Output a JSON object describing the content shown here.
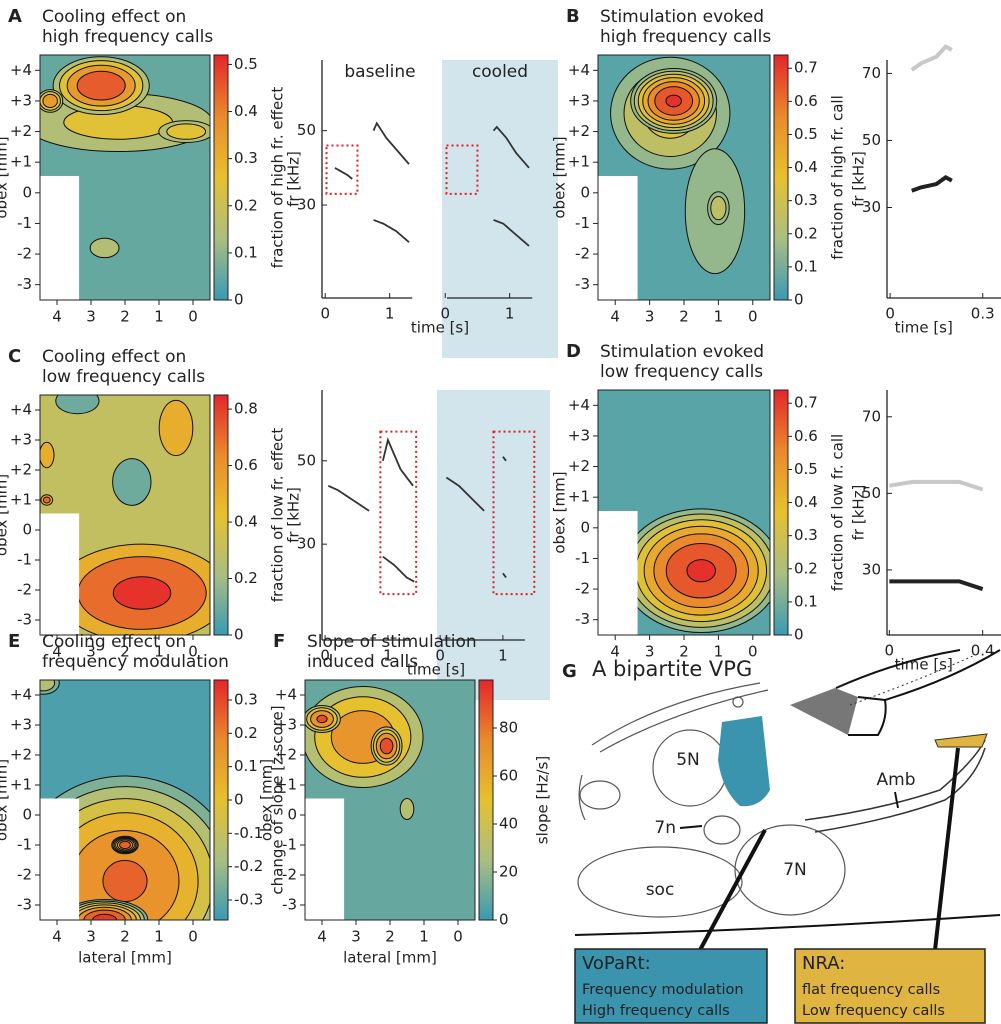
{
  "chart_data": [
    {
      "type": "contour",
      "label": "A",
      "title": [
        "Cooling effect on",
        "high frequency calls"
      ],
      "ylabel": "obex [mm]",
      "colorbar_label": "fraction of high fr. effect",
      "xlim": [
        4.5,
        -0.5
      ],
      "xticks": [
        4,
        3,
        2,
        1,
        0
      ],
      "ylim": [
        -3.5,
        4.5
      ],
      "yticks": [
        -3,
        -2,
        -1,
        0,
        {
          "value": 1,
          "label": "+1"
        },
        {
          "value": 2,
          "label": "+2"
        },
        {
          "value": 3,
          "label": "+3"
        },
        {
          "value": 4,
          "label": "+4"
        }
      ],
      "clim": [
        0,
        0.52
      ],
      "cticks": [
        0,
        0.1,
        0.2,
        0.3,
        0.4,
        0.5
      ],
      "colormap": [
        "#3a9ab3",
        "#a9be82",
        "#e6c12f",
        "#e98a2c",
        "#e4262b"
      ],
      "background": 0.05,
      "hotspots": [
        {
          "x": 2.2,
          "y": 2.3,
          "rx": 3.2,
          "ry": 1.1,
          "value": 0.25
        },
        {
          "x": 2.7,
          "y": 3.5,
          "rx": 1.5,
          "ry": 1.0,
          "value": 0.5
        },
        {
          "x": 0.2,
          "y": 2.0,
          "rx": 0.9,
          "ry": 0.4,
          "value": 0.3
        },
        {
          "x": 4.2,
          "y": 3.0,
          "rx": 0.4,
          "ry": 0.4,
          "value": 0.4
        },
        {
          "x": 2.6,
          "y": -1.8,
          "rx": 0.6,
          "ry": 0.45,
          "value": 0.15
        }
      ]
    },
    {
      "type": "spectrogram",
      "ylabel": "fr [kHz]",
      "xlabel": "time [s]",
      "xlim": [
        -0.05,
        1.75
      ],
      "xticks": [
        0,
        1
      ],
      "ylim": [
        5,
        69
      ],
      "yticks": [
        30,
        50
      ],
      "panels": [
        {
          "name": "baseline",
          "shaded": false,
          "highlight": [
            0.02,
            0.5,
            33,
            46
          ],
          "traces": [
            {
              "t": [
                0.15,
                0.25,
                0.35,
                0.42
              ],
              "f": [
                40,
                39,
                38,
                37
              ]
            },
            {
              "t": [
                0.75,
                0.8,
                0.95,
                1.1,
                1.3
              ],
              "f": [
                50,
                52,
                48,
                45,
                41
              ]
            },
            {
              "t": [
                0.75,
                0.9,
                1.1,
                1.3
              ],
              "f": [
                26,
                25,
                23,
                20
              ]
            }
          ]
        },
        {
          "name": "cooled",
          "shaded": true,
          "highlight": [
            0.02,
            0.5,
            33,
            46
          ],
          "traces": [
            {
              "t": [
                0.75,
                0.8,
                0.95,
                1.1,
                1.3
              ],
              "f": [
                50,
                51,
                48,
                44,
                40
              ]
            },
            {
              "t": [
                0.75,
                0.9,
                1.1,
                1.3
              ],
              "f": [
                26,
                25,
                22,
                19
              ]
            }
          ]
        }
      ]
    },
    {
      "type": "contour",
      "label": "B",
      "title": [
        "Stimulation evoked",
        "high frequency calls"
      ],
      "ylabel": "obex [mm]",
      "colorbar_label": "fraction of high fr. call",
      "xlim": [
        4.5,
        -0.5
      ],
      "xticks": [
        4,
        3,
        2,
        1,
        0
      ],
      "ylim": [
        -3.5,
        4.5
      ],
      "yticks": [
        -3,
        -2,
        -1,
        0,
        {
          "value": 1,
          "label": "+1"
        },
        {
          "value": 2,
          "label": "+2"
        },
        {
          "value": 3,
          "label": "+3"
        },
        {
          "value": 4,
          "label": "+4"
        }
      ],
      "clim": [
        0,
        0.74
      ],
      "cticks": [
        0,
        0.1,
        0.2,
        0.3,
        0.4,
        0.5,
        0.6,
        0.7
      ],
      "colormap": [
        "#3a9ab3",
        "#a9be82",
        "#e6c12f",
        "#e98a2c",
        "#e4262b"
      ],
      "background": 0.05,
      "hotspots": [
        {
          "x": 2.4,
          "y": 2.6,
          "rx": 1.9,
          "ry": 2.0,
          "value": 0.35
        },
        {
          "x": 2.3,
          "y": 3.0,
          "rx": 1.3,
          "ry": 1.1,
          "value": 0.72
        },
        {
          "x": 1.1,
          "y": -0.6,
          "rx": 1.1,
          "ry": 2.6,
          "value": 0.18
        },
        {
          "x": 1.0,
          "y": -0.5,
          "rx": 0.35,
          "ry": 0.6,
          "value": 0.3
        }
      ]
    },
    {
      "type": "spectrogram",
      "ylabel": "fr [kHz]",
      "xlabel": "time [s]",
      "xlim": [
        -0.01,
        0.33
      ],
      "xticks": [
        0,
        0.3
      ],
      "ylim": [
        3,
        74
      ],
      "yticks": [
        30,
        50,
        70
      ],
      "panels": [
        {
          "traces": [
            {
              "color": "#c8c8c8",
              "t": [
                0.07,
                0.1,
                0.15,
                0.18,
                0.2
              ],
              "f": [
                71,
                73,
                75,
                78,
                77
              ]
            },
            {
              "color": "#222222",
              "t": [
                0.07,
                0.1,
                0.15,
                0.18,
                0.2
              ],
              "f": [
                35,
                36,
                37,
                39,
                38
              ]
            }
          ]
        }
      ]
    },
    {
      "type": "contour",
      "label": "C",
      "title": [
        "Cooling effect on",
        "low frequency calls"
      ],
      "ylabel": "obex [mm]",
      "colorbar_label": "fraction of low fr. effect",
      "xlim": [
        4.5,
        -0.5
      ],
      "xticks": [
        4,
        3,
        2,
        1,
        0
      ],
      "ylim": [
        -3.5,
        4.5
      ],
      "yticks": [
        -3,
        -2,
        -1,
        0,
        {
          "value": 1,
          "label": "+1"
        },
        {
          "value": 2,
          "label": "+2"
        },
        {
          "value": 3,
          "label": "+3"
        },
        {
          "value": 4,
          "label": "+4"
        }
      ],
      "clim": [
        0,
        0.85
      ],
      "cticks": [
        0,
        0.2,
        0.4,
        0.6,
        0.8
      ],
      "colormap": [
        "#3a9ab3",
        "#a9be82",
        "#e6c12f",
        "#e98a2c",
        "#e4262b"
      ],
      "background": 0.3,
      "hotspots": [
        {
          "x": 1.5,
          "y": -2.1,
          "rx": 2.8,
          "ry": 1.8,
          "value": 0.85
        },
        {
          "x": 1.8,
          "y": 1.6,
          "rx": 0.8,
          "ry": 1.1,
          "value": 0.1
        },
        {
          "x": 3.4,
          "y": 4.3,
          "rx": 0.9,
          "ry": 0.6,
          "value": 0.1
        },
        {
          "x": 0.5,
          "y": 3.4,
          "rx": 0.7,
          "ry": 1.3,
          "value": 0.5
        },
        {
          "x": 4.3,
          "y": 2.5,
          "rx": 0.3,
          "ry": 0.6,
          "value": 0.5
        },
        {
          "x": 4.3,
          "y": 1.0,
          "rx": 0.2,
          "ry": 0.2,
          "value": 0.7
        }
      ]
    },
    {
      "type": "spectrogram",
      "ylabel": "fr [kHz]",
      "xlabel": "time [s]",
      "xlim": [
        -0.05,
        1.75
      ],
      "xticks": [
        0,
        1
      ],
      "ylim": [
        7,
        67
      ],
      "yticks": [
        30,
        50
      ],
      "panels": [
        {
          "name": null,
          "shaded": false,
          "highlight": [
            0.88,
            1.45,
            18,
            57
          ],
          "traces": [
            {
              "t": [
                0.05,
                0.2,
                0.4,
                0.6,
                0.7
              ],
              "f": [
                44,
                43,
                41,
                39,
                38
              ]
            },
            {
              "t": [
                0.92,
                1.0,
                1.2,
                1.4
              ],
              "f": [
                50,
                55,
                48,
                44
              ]
            },
            {
              "t": [
                0.92,
                1.1,
                1.3,
                1.42
              ],
              "f": [
                27,
                25,
                22,
                21
              ]
            }
          ]
        },
        {
          "name": null,
          "shaded": true,
          "highlight": [
            0.85,
            1.5,
            18,
            57
          ],
          "traces": [
            {
              "t": [
                0.1,
                0.3,
                0.5,
                0.7
              ],
              "f": [
                46,
                44,
                41,
                38
              ]
            },
            {
              "t": [
                1.0,
                1.05
              ],
              "f": [
                51,
                50
              ]
            },
            {
              "t": [
                1.0,
                1.05
              ],
              "f": [
                23,
                22
              ]
            }
          ]
        }
      ]
    },
    {
      "type": "contour",
      "label": "D",
      "title": [
        "Stimulation evoked",
        "low frequency calls"
      ],
      "ylabel": "obex [mm]",
      "colorbar_label": "fraction of low fr. call",
      "xlim": [
        4.5,
        -0.5
      ],
      "xticks": [
        4,
        3,
        2,
        1,
        0
      ],
      "ylim": [
        -3.5,
        4.5
      ],
      "yticks": [
        -3,
        -2,
        -1,
        0,
        {
          "value": 1,
          "label": "+1"
        },
        {
          "value": 2,
          "label": "+2"
        },
        {
          "value": 3,
          "label": "+3"
        },
        {
          "value": 4,
          "label": "+4"
        }
      ],
      "clim": [
        0,
        0.74
      ],
      "cticks": [
        0,
        0.1,
        0.2,
        0.3,
        0.4,
        0.5,
        0.6,
        0.7
      ],
      "colormap": [
        "#3a9ab3",
        "#a9be82",
        "#e6c12f",
        "#e98a2c",
        "#e4262b"
      ],
      "background": 0.05,
      "hotspots": [
        {
          "x": 1.5,
          "y": -1.4,
          "rx": 2.4,
          "ry": 2.1,
          "value": 0.72
        }
      ]
    },
    {
      "type": "spectrogram",
      "ylabel": "fr [kHz]",
      "xlabel": "time [s]",
      "xlim": [
        -0.01,
        0.44
      ],
      "xticks": [
        0,
        0.4
      ],
      "ylim": [
        13,
        77
      ],
      "yticks": [
        30,
        50,
        70
      ],
      "panels": [
        {
          "traces": [
            {
              "color": "#c8c8c8",
              "t": [
                0,
                0.1,
                0.2,
                0.3,
                0.4
              ],
              "f": [
                52,
                53,
                53,
                53,
                51
              ]
            },
            {
              "color": "#222222",
              "t": [
                0,
                0.1,
                0.2,
                0.3,
                0.4
              ],
              "f": [
                27,
                27,
                27,
                27,
                25
              ]
            }
          ]
        }
      ]
    },
    {
      "type": "contour",
      "label": "E",
      "title": [
        "Cooling effect on",
        "frequency modulation"
      ],
      "ylabel": "obex [mm]",
      "xlabel": "lateral  [mm]",
      "colorbar_label": "change of slope [z-score]",
      "xlim": [
        4.5,
        -0.5
      ],
      "xticks": [
        4,
        3,
        2,
        1,
        0
      ],
      "ylim": [
        -3.5,
        4.5
      ],
      "yticks": [
        -3,
        -2,
        -1,
        0,
        {
          "value": 1,
          "label": "+1"
        },
        {
          "value": 2,
          "label": "+2"
        },
        {
          "value": 3,
          "label": "+3"
        },
        {
          "value": 4,
          "label": "+4"
        }
      ],
      "clim": [
        -0.36,
        0.36
      ],
      "cticks": [
        -0.3,
        -0.2,
        -0.1,
        0,
        0.1,
        0.2,
        0.3
      ],
      "colormap": [
        "#3a9ab3",
        "#a9be82",
        "#e6c12f",
        "#e98a2c",
        "#e4262b"
      ],
      "background": -0.33,
      "hotspots": [
        {
          "x": 2.0,
          "y": -2.2,
          "rx": 3.4,
          "ry": 3.6,
          "value": 0.22
        },
        {
          "x": 2.0,
          "y": -1.0,
          "rx": 0.4,
          "ry": 0.3,
          "value": 0.3
        },
        {
          "x": 2.6,
          "y": -3.5,
          "rx": 1.3,
          "ry": 0.7,
          "value": 0.35
        },
        {
          "x": 4.4,
          "y": 4.4,
          "rx": 0.5,
          "ry": 0.4,
          "value": -0.1
        }
      ]
    },
    {
      "type": "contour",
      "label": "F",
      "title": [
        "Slope of stimulation",
        "induced calls"
      ],
      "ylabel": "obex [mm]",
      "xlabel": "lateral  [mm]",
      "colorbar_label": "slope  [Hz/s]",
      "xlim": [
        4.5,
        -0.5
      ],
      "xticks": [
        4,
        3,
        2,
        1,
        0
      ],
      "ylim": [
        -3.5,
        4.5
      ],
      "yticks": [
        -3,
        -2,
        -1,
        0,
        {
          "value": 1,
          "label": "+1"
        },
        {
          "value": 2,
          "label": "+2"
        },
        {
          "value": 3,
          "label": "+3"
        },
        {
          "value": 4,
          "label": "+4"
        }
      ],
      "clim": [
        0,
        100
      ],
      "cticks": [
        0,
        20,
        40,
        60,
        80
      ],
      "colormap": [
        "#3a9ab3",
        "#a9be82",
        "#e6c12f",
        "#e98a2c",
        "#e4262b"
      ],
      "background": 5,
      "hotspots": [
        {
          "x": 2.8,
          "y": 2.6,
          "rx": 2.0,
          "ry": 1.9,
          "value": 75
        },
        {
          "x": 2.1,
          "y": 2.3,
          "rx": 0.5,
          "ry": 0.7,
          "value": 92
        },
        {
          "x": 4.0,
          "y": 3.2,
          "rx": 0.6,
          "ry": 0.5,
          "value": 85
        },
        {
          "x": 1.5,
          "y": 0.2,
          "rx": 0.4,
          "ry": 0.7,
          "value": 25
        }
      ]
    }
  ],
  "diagram": {
    "label": "G",
    "title": "A bipartite VPG",
    "structures": [
      "5N",
      "7n",
      "7N",
      "soc",
      "Amb"
    ],
    "boxes": [
      {
        "title": "VoPaRt:",
        "lines": [
          "Frequency modulation",
          "High frequency calls"
        ]
      },
      {
        "title": "NRA:",
        "lines": [
          "flat frequency calls",
          "Low frequency calls"
        ]
      }
    ]
  }
}
